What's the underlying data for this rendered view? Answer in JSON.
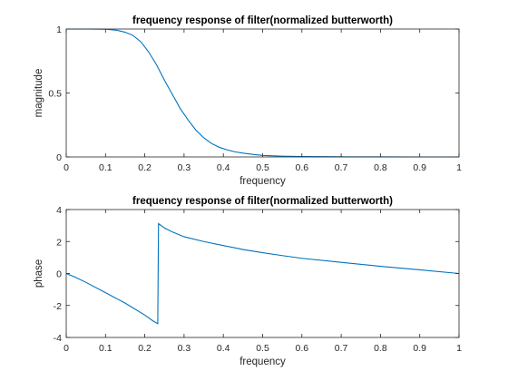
{
  "chart_data": [
    {
      "type": "line",
      "title": "frequency response of filter(normalized butterworth)",
      "xlabel": "frequency",
      "ylabel": "magnitude",
      "xlim": [
        0,
        1
      ],
      "ylim": [
        0,
        1
      ],
      "xticks": [
        "0",
        "0.1",
        "0.2",
        "0.3",
        "0.4",
        "0.5",
        "0.6",
        "0.7",
        "0.8",
        "0.9",
        "1"
      ],
      "yticks": [
        "0",
        "0.5",
        "1"
      ],
      "grid": false,
      "color": "#0072bd",
      "series": [
        {
          "x": [
            0,
            0.05,
            0.1,
            0.13,
            0.15,
            0.17,
            0.19,
            0.21,
            0.23,
            0.25,
            0.27,
            0.29,
            0.31,
            0.33,
            0.35,
            0.37,
            0.39,
            0.41,
            0.43,
            0.45,
            0.48,
            0.5,
            0.55,
            0.6,
            0.7,
            0.8,
            0.9,
            1.0
          ],
          "y": [
            1,
            1,
            0.999,
            0.99,
            0.975,
            0.95,
            0.9,
            0.82,
            0.72,
            0.6,
            0.49,
            0.38,
            0.29,
            0.21,
            0.15,
            0.105,
            0.075,
            0.055,
            0.04,
            0.03,
            0.018,
            0.012,
            0.006,
            0.003,
            0.001,
            0.0003,
            0.0001,
            0
          ]
        }
      ]
    },
    {
      "type": "line",
      "title": "frequency response of filter(normalized butterworth)",
      "xlabel": "frequency",
      "ylabel": "phase",
      "xlim": [
        0,
        1
      ],
      "ylim": [
        -4,
        4
      ],
      "xticks": [
        "0",
        "0.1",
        "0.2",
        "0.3",
        "0.4",
        "0.5",
        "0.6",
        "0.7",
        "0.8",
        "0.9",
        "1"
      ],
      "yticks": [
        "-4",
        "-2",
        "0",
        "2",
        "4"
      ],
      "grid": false,
      "color": "#0072bd",
      "series": [
        {
          "x": [
            0,
            0.02,
            0.05,
            0.1,
            0.15,
            0.2,
            0.22,
            0.233,
            0.235,
            0.25,
            0.27,
            0.3,
            0.35,
            0.4,
            0.45,
            0.5,
            0.55,
            0.6,
            0.7,
            0.8,
            0.9,
            1.0
          ],
          "y": [
            0,
            -0.2,
            -0.55,
            -1.2,
            -1.85,
            -2.6,
            -2.95,
            -3.14,
            3.12,
            2.85,
            2.6,
            2.3,
            2.0,
            1.75,
            1.5,
            1.3,
            1.12,
            0.95,
            0.7,
            0.45,
            0.23,
            0
          ]
        }
      ]
    }
  ]
}
